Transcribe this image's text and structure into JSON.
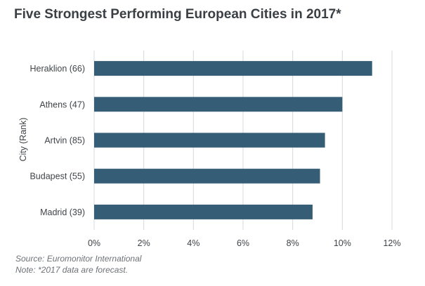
{
  "chart_data": {
    "type": "bar",
    "orientation": "horizontal",
    "title": "Five Strongest Performing European Cities in 2017*",
    "ylabel": "City (Rank)",
    "xlabel": "",
    "categories": [
      "Heraklion (66)",
      "Athens (47)",
      "Artvin (85)",
      "Budapest (55)",
      "Madrid (39)"
    ],
    "values": [
      11.2,
      10.0,
      9.3,
      9.1,
      8.8
    ],
    "xlim": [
      0,
      12
    ],
    "xticks": [
      "0%",
      "2%",
      "4%",
      "6%",
      "8%",
      "10%",
      "12%"
    ],
    "bar_color": "#365d76",
    "grid": true
  },
  "notes": {
    "source": "Source: Euromonitor International",
    "note": "Note: *2017 data are forecast."
  }
}
